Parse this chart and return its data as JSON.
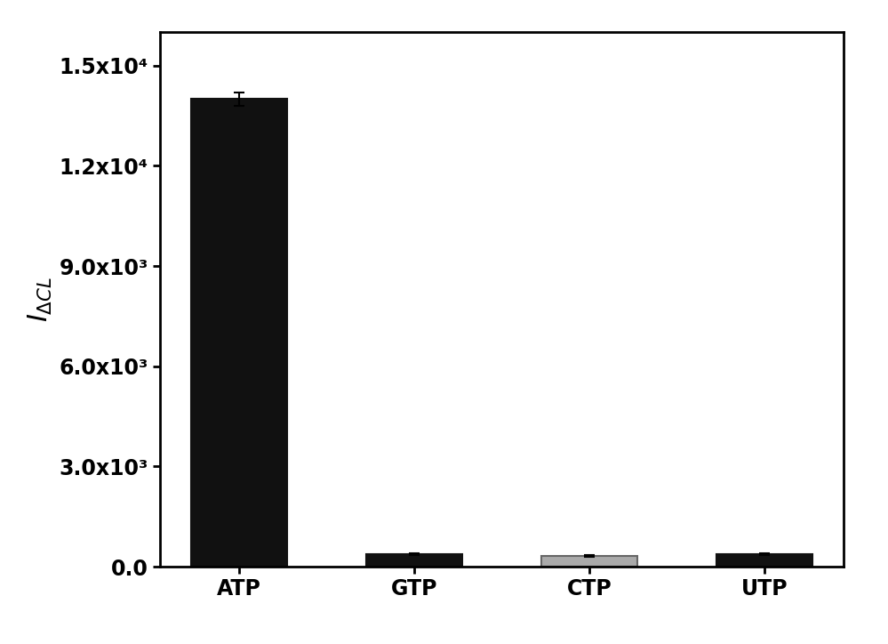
{
  "categories": [
    "ATP",
    "GTP",
    "CTP",
    "UTP"
  ],
  "values": [
    14000,
    380,
    320,
    370
  ],
  "errors": [
    200,
    30,
    25,
    28
  ],
  "bar_colors": [
    "#111111",
    "#111111",
    "#aaaaaa",
    "#111111"
  ],
  "bar_edgecolors": [
    "#111111",
    "#111111",
    "#666666",
    "#111111"
  ],
  "ylim": [
    0,
    16000
  ],
  "yticks": [
    0,
    3000,
    6000,
    9000,
    12000,
    15000
  ],
  "ytick_labels": [
    "0.0",
    "3.0x10³",
    "6.0x10³",
    "9.0x10³",
    "1.2x10⁴",
    "1.5x10⁴"
  ],
  "background_color": "#ffffff",
  "bar_width": 0.55,
  "tick_fontsize": 17,
  "label_fontsize": 22
}
